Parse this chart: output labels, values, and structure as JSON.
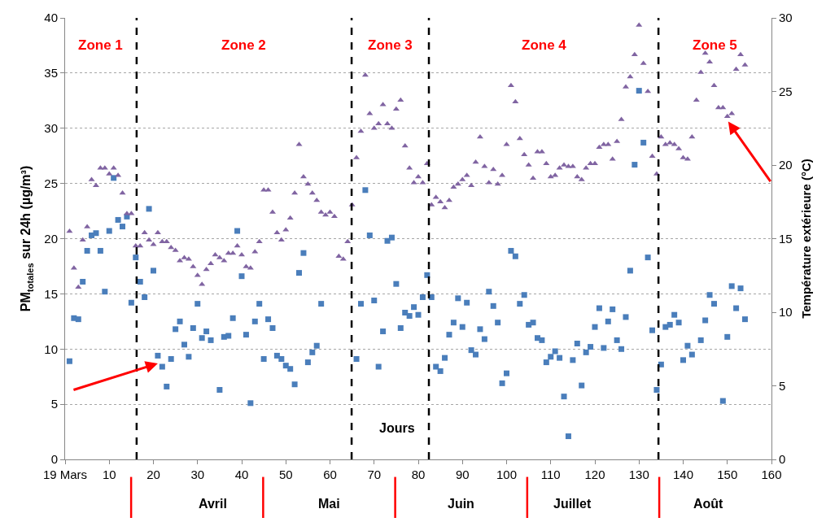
{
  "chart_data": {
    "type": "scatter",
    "xlabel": "Jours",
    "ylabel": "PM$_{totales}$ sur 24h (µg/m³)",
    "y2label": "Température extérieure (°C)",
    "xlim": [
      0,
      160
    ],
    "xticks": [
      {
        "value": 0,
        "label": "19 Mars"
      },
      10,
      20,
      30,
      40,
      50,
      60,
      70,
      80,
      90,
      100,
      110,
      120,
      130,
      140,
      150,
      160
    ],
    "ylim": [
      0,
      40
    ],
    "yticks": [
      0,
      5,
      10,
      15,
      20,
      25,
      30,
      35,
      40
    ],
    "y2lim": [
      0,
      30
    ],
    "y2ticks": [
      0,
      5,
      10,
      15,
      20,
      25,
      30
    ],
    "grid": "y",
    "series": [
      {
        "color": "#4a7ebb",
        "marker": "square",
        "x": [
          1,
          2,
          3,
          4,
          5,
          6,
          7,
          8,
          9,
          10,
          11,
          12,
          13,
          14,
          15,
          16,
          17,
          18,
          19,
          20,
          21,
          22,
          23,
          24,
          25,
          26,
          27,
          28,
          29,
          30,
          31,
          32,
          33,
          35,
          36,
          37,
          38,
          39,
          40,
          41,
          42,
          43,
          44,
          45,
          46,
          47,
          48,
          49,
          50,
          51,
          52,
          53,
          54,
          55,
          56,
          57,
          58,
          66,
          67,
          68,
          69,
          70,
          71,
          72,
          73,
          74,
          75,
          76,
          77,
          78,
          79,
          80,
          81,
          82,
          83,
          84,
          85,
          86,
          87,
          88,
          89,
          90,
          91,
          92,
          93,
          94,
          95,
          96,
          97,
          98,
          99,
          100,
          101,
          102,
          103,
          104,
          105,
          106,
          107,
          108,
          109,
          110,
          111,
          112,
          113,
          114,
          115,
          116,
          117,
          118,
          119,
          120,
          121,
          122,
          123,
          124,
          125,
          126,
          127,
          128,
          129,
          130,
          131,
          132,
          133,
          134,
          135,
          136,
          137,
          138,
          139,
          140,
          141,
          142,
          144,
          145,
          146,
          147,
          149,
          150,
          151,
          152,
          153,
          154
        ],
        "values": [
          8.9,
          12.8,
          12.7,
          16.1,
          18.9,
          20.3,
          20.5,
          18.9,
          15.2,
          20.7,
          25.5,
          21.7,
          21.1,
          22.0,
          14.2,
          18.3,
          16.1,
          14.7,
          22.7,
          17.1,
          9.4,
          8.4,
          6.6,
          9.1,
          11.8,
          12.5,
          10.4,
          9.3,
          11.9,
          14.1,
          11.0,
          11.6,
          10.8,
          6.3,
          11.1,
          11.2,
          12.8,
          20.7,
          16.6,
          11.3,
          5.1,
          12.5,
          14.1,
          9.1,
          12.7,
          11.9,
          9.4,
          9.1,
          8.5,
          8.2,
          6.8,
          16.9,
          18.7,
          8.8,
          9.7,
          10.3,
          14.1,
          9.1,
          14.1,
          24.4,
          20.3,
          14.4,
          8.4,
          11.6,
          19.8,
          20.1,
          15.9,
          11.9,
          13.3,
          13.0,
          13.8,
          13.1,
          14.7,
          16.7,
          14.7,
          8.4,
          8.0,
          9.2,
          11.3,
          12.4,
          14.6,
          12.0,
          14.2,
          9.9,
          9.5,
          11.8,
          10.9,
          15.2,
          13.9,
          12.4,
          6.9,
          7.8,
          18.9,
          18.4,
          14.1,
          14.9,
          12.2,
          12.4,
          11.0,
          10.8,
          8.8,
          9.3,
          9.8,
          9.2,
          5.7,
          2.1,
          9.0,
          10.5,
          6.7,
          9.7,
          10.2,
          12.0,
          13.7,
          10.1,
          12.5,
          13.6,
          10.8,
          10.0,
          12.9,
          17.1,
          26.7,
          33.4,
          28.7,
          18.3,
          11.7,
          6.3,
          8.6,
          12.0,
          12.2,
          13.1,
          12.4,
          9.0,
          10.3,
          9.5,
          10.8,
          12.6,
          14.9,
          14.1,
          5.3,
          11.1,
          15.7,
          13.7,
          15.5,
          12.7
        ]
      },
      {
        "color": "#8064a2",
        "marker": "triangle",
        "axis": "y2",
        "x": [
          1,
          2,
          3,
          4,
          5,
          6,
          7,
          8,
          9,
          10,
          11,
          12,
          13,
          14,
          15,
          16,
          17,
          18,
          19,
          20,
          21,
          22,
          23,
          24,
          25,
          26,
          27,
          28,
          29,
          30,
          31,
          32,
          33,
          34,
          35,
          36,
          37,
          38,
          39,
          40,
          41,
          42,
          43,
          44,
          45,
          46,
          47,
          48,
          49,
          50,
          51,
          52,
          53,
          54,
          55,
          56,
          57,
          58,
          59,
          60,
          61,
          62,
          63,
          64,
          65,
          66,
          67,
          68,
          69,
          70,
          71,
          72,
          73,
          74,
          75,
          76,
          77,
          78,
          79,
          80,
          81,
          82,
          83,
          84,
          85,
          86,
          87,
          88,
          89,
          90,
          91,
          92,
          93,
          94,
          95,
          96,
          97,
          98,
          99,
          100,
          101,
          102,
          103,
          104,
          105,
          106,
          107,
          108,
          109,
          110,
          111,
          112,
          113,
          114,
          115,
          116,
          117,
          118,
          119,
          120,
          121,
          122,
          123,
          124,
          125,
          126,
          127,
          128,
          129,
          130,
          131,
          132,
          133,
          134,
          135,
          136,
          137,
          138,
          139,
          140,
          141,
          142,
          143,
          144,
          145,
          146,
          147,
          148,
          149,
          150,
          151,
          152,
          153,
          154
        ],
        "values": [
          15.5,
          13.0,
          11.7,
          14.9,
          15.8,
          19.0,
          18.6,
          19.8,
          19.8,
          19.4,
          19.8,
          19.3,
          18.1,
          16.7,
          16.7,
          14.5,
          14.5,
          15.4,
          14.9,
          14.6,
          15.4,
          14.8,
          14.8,
          14.4,
          14.2,
          13.5,
          13.7,
          13.6,
          13.1,
          12.5,
          11.9,
          12.9,
          13.3,
          13.9,
          13.7,
          13.5,
          14.0,
          14.0,
          14.5,
          13.9,
          13.1,
          13.0,
          14.1,
          14.8,
          18.3,
          18.3,
          16.8,
          15.4,
          14.9,
          15.6,
          16.4,
          18.1,
          21.4,
          19.2,
          18.7,
          18.1,
          17.6,
          16.8,
          16.6,
          16.8,
          16.5,
          13.8,
          13.6,
          14.8,
          17.3,
          20.5,
          22.3,
          26.1,
          23.5,
          22.5,
          22.8,
          24.1,
          22.8,
          22.5,
          23.8,
          24.4,
          21.3,
          19.8,
          18.8,
          19.2,
          18.8,
          20.1,
          17.3,
          17.8,
          17.5,
          17.1,
          17.6,
          18.5,
          18.7,
          19.0,
          19.3,
          18.6,
          20.2,
          21.9,
          19.9,
          18.8,
          19.7,
          18.7,
          19.3,
          21.4,
          25.4,
          24.3,
          21.8,
          20.7,
          20.0,
          19.1,
          20.9,
          20.9,
          20.1,
          19.2,
          19.3,
          19.8,
          20.0,
          19.9,
          19.9,
          19.2,
          19.0,
          19.8,
          20.1,
          20.1,
          21.2,
          21.4,
          21.4,
          20.4,
          21.6,
          23.1,
          25.3,
          26.0,
          27.5,
          29.5,
          26.9,
          25.0,
          20.6,
          19.4,
          21.9,
          21.4,
          21.5,
          21.4,
          21.1,
          20.5,
          20.4,
          21.9,
          24.4,
          26.3,
          27.6,
          27.0,
          25.4,
          23.9,
          23.9,
          23.3,
          23.5,
          26.5,
          27.5,
          26.8
        ]
      }
    ],
    "ref_lines": [
      {
        "axis": "x",
        "value": 16.2,
        "color": "#000000",
        "line_style": "dashed"
      },
      {
        "axis": "x",
        "value": 64.9,
        "color": "#000000",
        "line_style": "dashed"
      },
      {
        "axis": "x",
        "value": 82.4,
        "color": "#000000",
        "line_style": "dashed"
      },
      {
        "axis": "x",
        "value": 134.4,
        "color": "#000000",
        "line_style": "dashed"
      }
    ],
    "annotations": [
      "Zone 1",
      "Zone 2",
      "Zone 3",
      "Zone 4",
      "Zone 5",
      "Avril",
      "Mai",
      "Juin",
      "Juillet",
      "Août"
    ]
  }
}
